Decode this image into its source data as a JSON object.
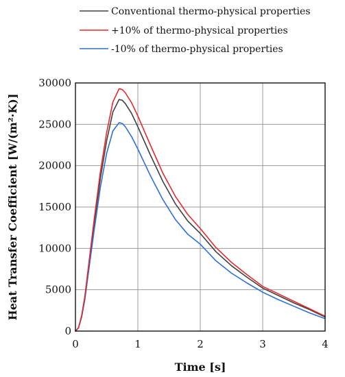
{
  "chart_data": {
    "type": "line",
    "title": "",
    "xlabel": "Time [s]",
    "ylabel": "Heat Transfer Coefficient [W/(m²·K)]",
    "xlim": [
      0,
      4
    ],
    "ylim": [
      0,
      30000
    ],
    "x_ticks": [
      "0",
      "1",
      "2",
      "3",
      "4"
    ],
    "y_ticks": [
      "0",
      "5000",
      "10000",
      "15000",
      "20000",
      "25000",
      "30000"
    ],
    "grid": true,
    "legend_position": "top",
    "series": [
      {
        "name": "Conventional thermo-physical properties",
        "color": "#404040",
        "points": [
          [
            0,
            0
          ],
          [
            0.05,
            400
          ],
          [
            0.1,
            1800
          ],
          [
            0.15,
            4000
          ],
          [
            0.2,
            7000
          ],
          [
            0.3,
            13000
          ],
          [
            0.4,
            18500
          ],
          [
            0.5,
            23000
          ],
          [
            0.6,
            26500
          ],
          [
            0.7,
            28000
          ],
          [
            0.75,
            27900
          ],
          [
            0.8,
            27500
          ],
          [
            0.9,
            26300
          ],
          [
            1.0,
            24700
          ],
          [
            1.2,
            21300
          ],
          [
            1.4,
            18100
          ],
          [
            1.6,
            15400
          ],
          [
            1.8,
            13300
          ],
          [
            2.0,
            11800
          ],
          [
            2.25,
            9600
          ],
          [
            2.5,
            7900
          ],
          [
            2.75,
            6500
          ],
          [
            3.0,
            5200
          ],
          [
            3.25,
            4300
          ],
          [
            3.5,
            3400
          ],
          [
            3.75,
            2600
          ],
          [
            4.0,
            1700
          ]
        ]
      },
      {
        "name": "+10% of thermo-physical properties",
        "color": "#e8272a",
        "points": [
          [
            0,
            0
          ],
          [
            0.05,
            400
          ],
          [
            0.1,
            1900
          ],
          [
            0.15,
            4200
          ],
          [
            0.2,
            7300
          ],
          [
            0.3,
            13500
          ],
          [
            0.4,
            19300
          ],
          [
            0.5,
            24000
          ],
          [
            0.6,
            27700
          ],
          [
            0.7,
            29300
          ],
          [
            0.75,
            29200
          ],
          [
            0.8,
            28800
          ],
          [
            0.9,
            27600
          ],
          [
            1.0,
            26000
          ],
          [
            1.2,
            22500
          ],
          [
            1.4,
            19100
          ],
          [
            1.6,
            16300
          ],
          [
            1.8,
            14100
          ],
          [
            2.0,
            12400
          ],
          [
            2.25,
            10100
          ],
          [
            2.5,
            8300
          ],
          [
            2.75,
            6800
          ],
          [
            3.0,
            5400
          ],
          [
            3.25,
            4500
          ],
          [
            3.5,
            3600
          ],
          [
            3.75,
            2700
          ],
          [
            4.0,
            1800
          ]
        ]
      },
      {
        "name": "-10% of thermo-physical properties",
        "color": "#2b6fd8",
        "points": [
          [
            0,
            0
          ],
          [
            0.05,
            400
          ],
          [
            0.1,
            1700
          ],
          [
            0.15,
            3800
          ],
          [
            0.2,
            6600
          ],
          [
            0.3,
            12200
          ],
          [
            0.4,
            17400
          ],
          [
            0.5,
            21500
          ],
          [
            0.6,
            24200
          ],
          [
            0.7,
            25200
          ],
          [
            0.75,
            25100
          ],
          [
            0.8,
            24700
          ],
          [
            0.9,
            23500
          ],
          [
            1.0,
            22000
          ],
          [
            1.2,
            18800
          ],
          [
            1.4,
            15900
          ],
          [
            1.6,
            13500
          ],
          [
            1.8,
            11700
          ],
          [
            2.0,
            10500
          ],
          [
            2.25,
            8500
          ],
          [
            2.5,
            7000
          ],
          [
            2.75,
            5800
          ],
          [
            3.0,
            4700
          ],
          [
            3.25,
            3800
          ],
          [
            3.5,
            3000
          ],
          [
            3.75,
            2200
          ],
          [
            4.0,
            1500
          ]
        ]
      }
    ]
  }
}
